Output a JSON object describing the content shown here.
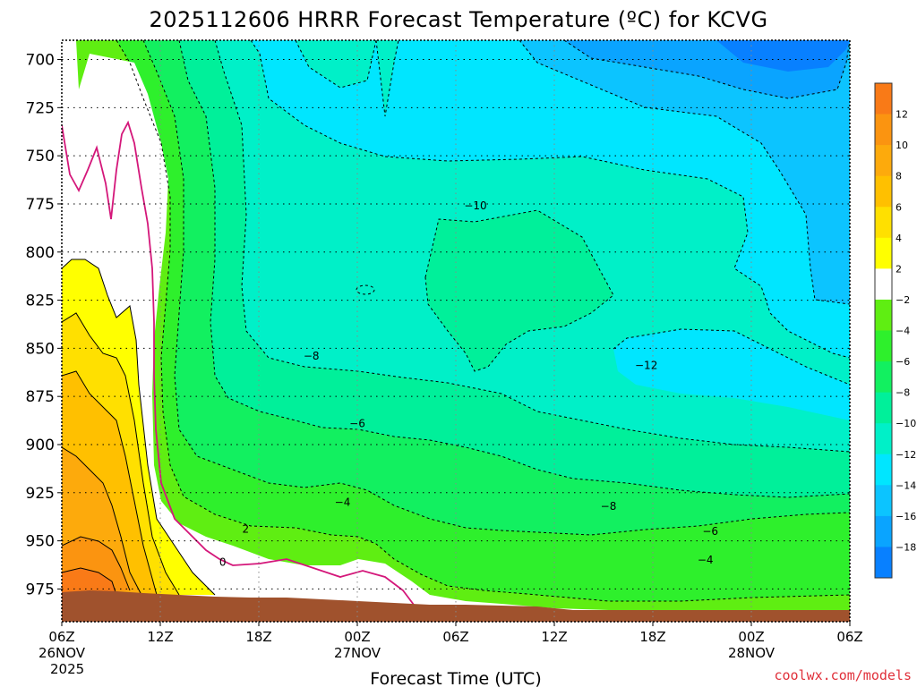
{
  "chart_data": {
    "type": "heatmap",
    "title": "2025112606 HRRR Forecast Temperature (ºC) for KCVG",
    "xlabel": "Forecast Time (UTC)",
    "ylabel": "",
    "x_ticks": [
      {
        "label": "06Z",
        "sub1": "26NOV",
        "sub2": "2025",
        "hour": 0
      },
      {
        "label": "12Z",
        "sub1": "",
        "sub2": "",
        "hour": 6
      },
      {
        "label": "18Z",
        "sub1": "",
        "sub2": "",
        "hour": 12
      },
      {
        "label": "00Z",
        "sub1": "27NOV",
        "sub2": "",
        "hour": 18
      },
      {
        "label": "06Z",
        "sub1": "",
        "sub2": "",
        "hour": 24
      },
      {
        "label": "12Z",
        "sub1": "",
        "sub2": "",
        "hour": 30
      },
      {
        "label": "18Z",
        "sub1": "",
        "sub2": "",
        "hour": 36
      },
      {
        "label": "00Z",
        "sub1": "28NOV",
        "sub2": "",
        "hour": 42
      },
      {
        "label": "06Z",
        "sub1": "",
        "sub2": "",
        "hour": 48
      }
    ],
    "y_ticks": [
      "700",
      "725",
      "750",
      "775",
      "800",
      "825",
      "850",
      "875",
      "900",
      "925",
      "950",
      "975"
    ],
    "y_values": [
      700,
      725,
      750,
      775,
      800,
      825,
      850,
      875,
      900,
      925,
      950,
      975
    ],
    "xlim": [
      0,
      48
    ],
    "ylim": [
      992,
      690
    ],
    "grid": true,
    "colorbar": {
      "labels": [
        "12",
        "10",
        "8",
        "6",
        "4",
        "2",
        "−2",
        "−4",
        "−6",
        "−8",
        "−10",
        "−12",
        "−14",
        "−16",
        "−18"
      ],
      "colors": [
        "#f97a17",
        "#fb9410",
        "#fdaa0c",
        "#ffc000",
        "#ffe000",
        "#ffff00",
        "#ffffff",
        "#5fee12",
        "#2ef02c",
        "#12f060",
        "#00f09a",
        "#00f0c8",
        "#00e6ff",
        "#0cc4ff",
        "#0aa4ff",
        "#0880ff"
      ]
    },
    "contour_labels": [
      {
        "text": "−10",
        "hour": 25.2,
        "p": 776
      },
      {
        "text": "−8",
        "hour": 15.2,
        "p": 854
      },
      {
        "text": "−12",
        "hour": 35.6,
        "p": 859
      },
      {
        "text": "−6",
        "hour": 18.0,
        "p": 889
      },
      {
        "text": "−4",
        "hour": 17.1,
        "p": 930
      },
      {
        "text": "−8",
        "hour": 33.3,
        "p": 932
      },
      {
        "text": "2",
        "hour": 11.2,
        "p": 944
      },
      {
        "text": "−6",
        "hour": 39.5,
        "p": 945
      },
      {
        "text": "0",
        "hour": 9.8,
        "p": 961
      },
      {
        "text": "−4",
        "hour": 39.2,
        "p": 960
      }
    ],
    "surface_color": "#a0522d"
  },
  "credit": "coolwx.com/models"
}
